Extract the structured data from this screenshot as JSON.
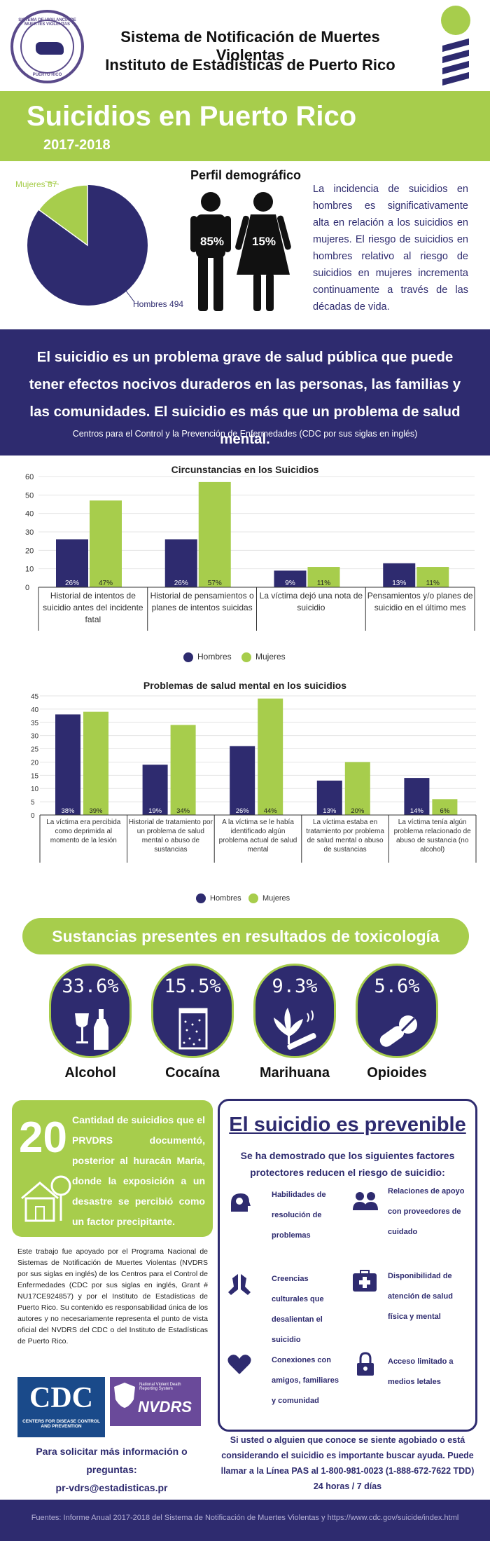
{
  "header": {
    "title_line1": "Sistema de Notificación de Muertes Violentas",
    "title_line2": "Instituto de Estadísticas de Puerto Rico",
    "seal_top": "SISTEMA DE VIGILANCIA DE MUERTES VIOLENTAS",
    "seal_bottom": "PUERTO RICO"
  },
  "band": {
    "title": "Suicidios en Puerto Rico",
    "years": "2017-2018"
  },
  "demographics": {
    "title": "Perfil demográfico",
    "pie": {
      "mujeres_label": "Mujeres 87",
      "hombres_label": "Hombres 494",
      "mujeres": 87,
      "hombres": 494
    },
    "male_pct": "85%",
    "female_pct": "15%",
    "text": "La incidencia de suicidios en hombres es significativamente alta en relación a los suicidios en mujeres. El riesgo de suicidios en hombres relativo al riesgo de suicidios en mujeres incrementa continuamente a través de las décadas de vida."
  },
  "quote": {
    "main": "El suicidio es un problema grave de salud pública que puede tener efectos nocivos duraderos en las personas, las familias y las comunidades. El suicidio es más que un problema de salud mental.",
    "source": "Centros para el Control y la Prevención de Enfermedades (CDC por sus siglas en inglés)"
  },
  "chart_data": [
    {
      "type": "bar",
      "title": "Circunstancias en los Suicidios",
      "categories": [
        "Historial de intentos de suicidio antes del incidente fatal",
        "Historial de pensamientos o planes de intentos suicidas",
        "La víctima dejó una nota de suicidio",
        "Pensamientos y/o planes de suicidio en el último mes"
      ],
      "series": [
        {
          "name": "Hombres",
          "values": [
            26,
            26,
            9,
            13
          ],
          "labels": [
            "26%",
            "26%",
            "9%",
            "13%"
          ]
        },
        {
          "name": "Mujeres",
          "values": [
            47,
            57,
            11,
            11
          ],
          "labels": [
            "47%",
            "57%",
            "11%",
            "11%"
          ]
        }
      ],
      "ylim": [
        0,
        60
      ],
      "yticks": [
        0,
        10,
        20,
        30,
        40,
        50,
        60
      ],
      "legend": "bottom"
    },
    {
      "type": "bar",
      "title": "Problemas de salud mental en los suicidios",
      "categories": [
        "La víctima era percibida como deprimida al momento de la lesión",
        "Historial de tratamiento por un problema de salud mental o abuso de sustancias",
        "A la víctima se le había identificado algún problema actual de salud mental",
        "La víctima estaba en tratamiento por problema de salud mental o abuso de sustancias",
        "La víctima tenía algún problema relacionado de abuso de sustancia (no alcohol)"
      ],
      "series": [
        {
          "name": "Hombres",
          "values": [
            38,
            19,
            26,
            13,
            14
          ],
          "labels": [
            "38%",
            "19%",
            "26%",
            "13%",
            "14%"
          ]
        },
        {
          "name": "Mujeres",
          "values": [
            39,
            34,
            44,
            20,
            6
          ],
          "labels": [
            "39%",
            "34%",
            "44%",
            "20%",
            "6%"
          ]
        }
      ],
      "ylim": [
        0,
        45
      ],
      "yticks": [
        0,
        5,
        10,
        15,
        20,
        25,
        30,
        35,
        40,
        45
      ],
      "legend": "bottom"
    }
  ],
  "legend": {
    "hombres": "Hombres",
    "mujeres": "Mujeres"
  },
  "colors": {
    "navy": "#2e2b6f",
    "green": "#a7cd4c"
  },
  "toxicology": {
    "title": "Sustancias presentes en resultados de toxicología",
    "items": [
      {
        "pct": "33.6%",
        "name": "Alcohol",
        "icon": "alcohol-icon"
      },
      {
        "pct": "15.5%",
        "name": "Cocaína",
        "icon": "cocaine-icon"
      },
      {
        "pct": "9.3%",
        "name": "Marihuana",
        "icon": "marijuana-icon"
      },
      {
        "pct": "5.6%",
        "name": "Opioides",
        "icon": "pills-icon"
      }
    ]
  },
  "hurricane": {
    "number": "20",
    "text": "Cantidad de suicidios que el PRVDRS documentó, posterior al huracán María, donde la exposición a un desastre se percibió como un factor precipitante."
  },
  "support": "Este trabajo fue apoyado por el Programa Nacional de Sistemas de Notificación de Muertes Violentas (NVDRS por sus siglas en inglés) de los Centros para el Control de Enfermedades (CDC por sus siglas en inglés, Grant # NU17CE924857) y por el Instituto de Estadísticas de Puerto Rico. Su contenido es responsabilidad única de los autores y no necesariamente representa el punto de vista oficial del NVDRS del CDC o del Instituto de Estadísticas de Puerto Rico.",
  "logos": {
    "cdc": "CDC",
    "cdc_sub": "CENTERS FOR DISEASE CONTROL AND PREVENTION",
    "nvdrs": "NVDRS",
    "nvdrs_sub": "National Violent Death Reporting System"
  },
  "contact": {
    "line1": "Para solicitar más información o",
    "line2": "preguntas:",
    "email": "pr-vdrs@estadisticas.pr"
  },
  "prevention": {
    "title": "El suicidio es prevenible",
    "subtitle": "Se ha demostrado que los siguientes factores protectores reducen el riesgo de suicidio:",
    "factors": [
      {
        "text": "Habilidades de resolución de problemas",
        "icon": "brain-head-icon"
      },
      {
        "text": "Relaciones de apoyo con proveedores de cuidado",
        "icon": "people-icon"
      },
      {
        "text": "Creencias culturales que desalientan el suicidio",
        "icon": "praying-hands-icon"
      },
      {
        "text": "Disponibilidad de atención de salud física y mental",
        "icon": "medical-kit-icon"
      },
      {
        "text": "Conexiones con amigos, familiares y comunidad",
        "icon": "heart-icon"
      },
      {
        "text": "Acceso limitado a medios letales",
        "icon": "lock-icon"
      }
    ],
    "footer": "Si usted o alguien que conoce se siente agobiado o está considerando el suicidio es importante buscar ayuda. Puede llamar a la Línea PAS al 1-800-981-0023 (1-888-672-7622 TDD) 24 horas / 7 días"
  },
  "footer": "Fuentes: Informe Anual 2017-2018 del Sistema de Notificación de Muertes Violentas y https://www.cdc.gov/suicide/index.html"
}
